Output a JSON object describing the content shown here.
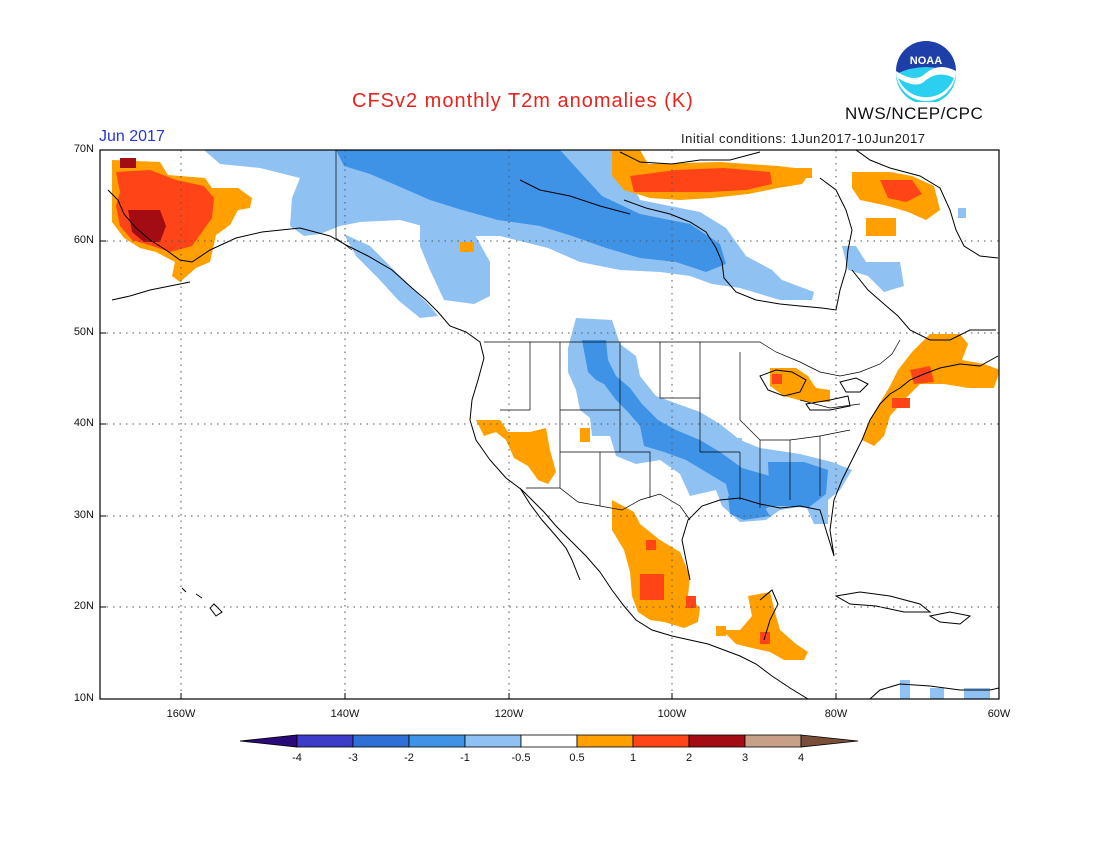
{
  "header": {
    "title": "CFSv2 monthly T2m anomalies (K)",
    "month": "Jun 2017",
    "initial_conditions": "Initial conditions: 1Jun2017-10Jun2017",
    "agency": "NWS/NCEP/CPC",
    "logo_text": "NOAA"
  },
  "map": {
    "lat_labels": [
      "70N",
      "60N",
      "50N",
      "40N",
      "30N",
      "20N",
      "10N"
    ],
    "lon_labels": [
      "160W",
      "140W",
      "120W",
      "100W",
      "80W",
      "60W"
    ],
    "extent": {
      "lon_min": -170,
      "lon_max": -60,
      "lat_min": 10,
      "lat_max": 70
    }
  },
  "colorbar": {
    "labels": [
      "-4",
      "-3",
      "-2",
      "-1",
      "-0.5",
      "0.5",
      "1",
      "2",
      "3",
      "4"
    ],
    "colors": [
      "#2a0a7a",
      "#3c3cc8",
      "#2f6fd6",
      "#3f93e6",
      "#8fc2f2",
      "#ffffff",
      "#ffa000",
      "#ff4418",
      "#a30c12",
      "#c8a088",
      "#7a4f3a"
    ]
  },
  "anomaly_palette": {
    "light_blue": "#8fc2f2",
    "blue": "#3f93e6",
    "orange": "#ffa000",
    "red_orange": "#ff4418",
    "dark_red": "#a30c12"
  }
}
